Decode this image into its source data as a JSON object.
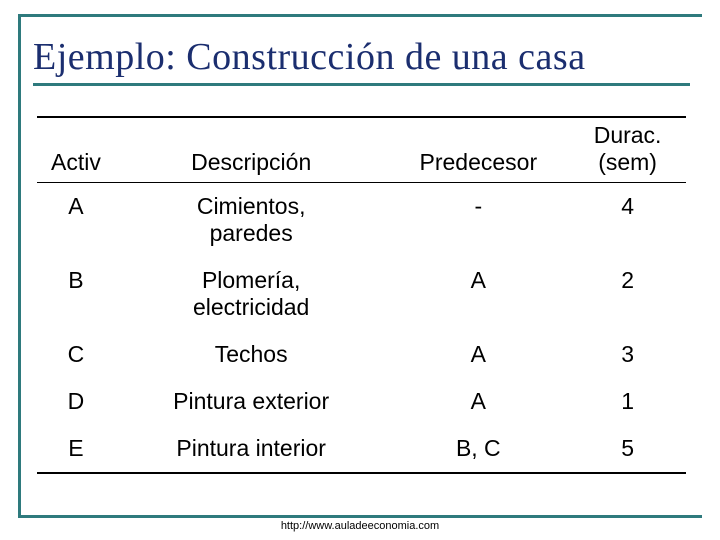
{
  "frame_color": "#2e7a7d",
  "title": {
    "text": "Ejemplo: Construcción de una casa",
    "color": "#1b2e6f"
  },
  "table": {
    "headers": {
      "activ": "Activ",
      "desc": "Descripción",
      "pred": "Predecesor",
      "dur_line1": "Durac.",
      "dur_line2": "(sem)"
    },
    "rows": [
      {
        "activ": "A",
        "desc": "Cimientos, paredes",
        "pred": "-",
        "dur": "4"
      },
      {
        "activ": "B",
        "desc": "Plomería, electricidad",
        "pred": "A",
        "dur": "2"
      },
      {
        "activ": "C",
        "desc": "Techos",
        "pred": "A",
        "dur": "3"
      },
      {
        "activ": "D",
        "desc": "Pintura exterior",
        "pred": "A",
        "dur": "1"
      },
      {
        "activ": "E",
        "desc": "Pintura interior",
        "pred": "B, C",
        "dur": "5"
      }
    ]
  },
  "footer": "http://www.auladeeconomia.com"
}
